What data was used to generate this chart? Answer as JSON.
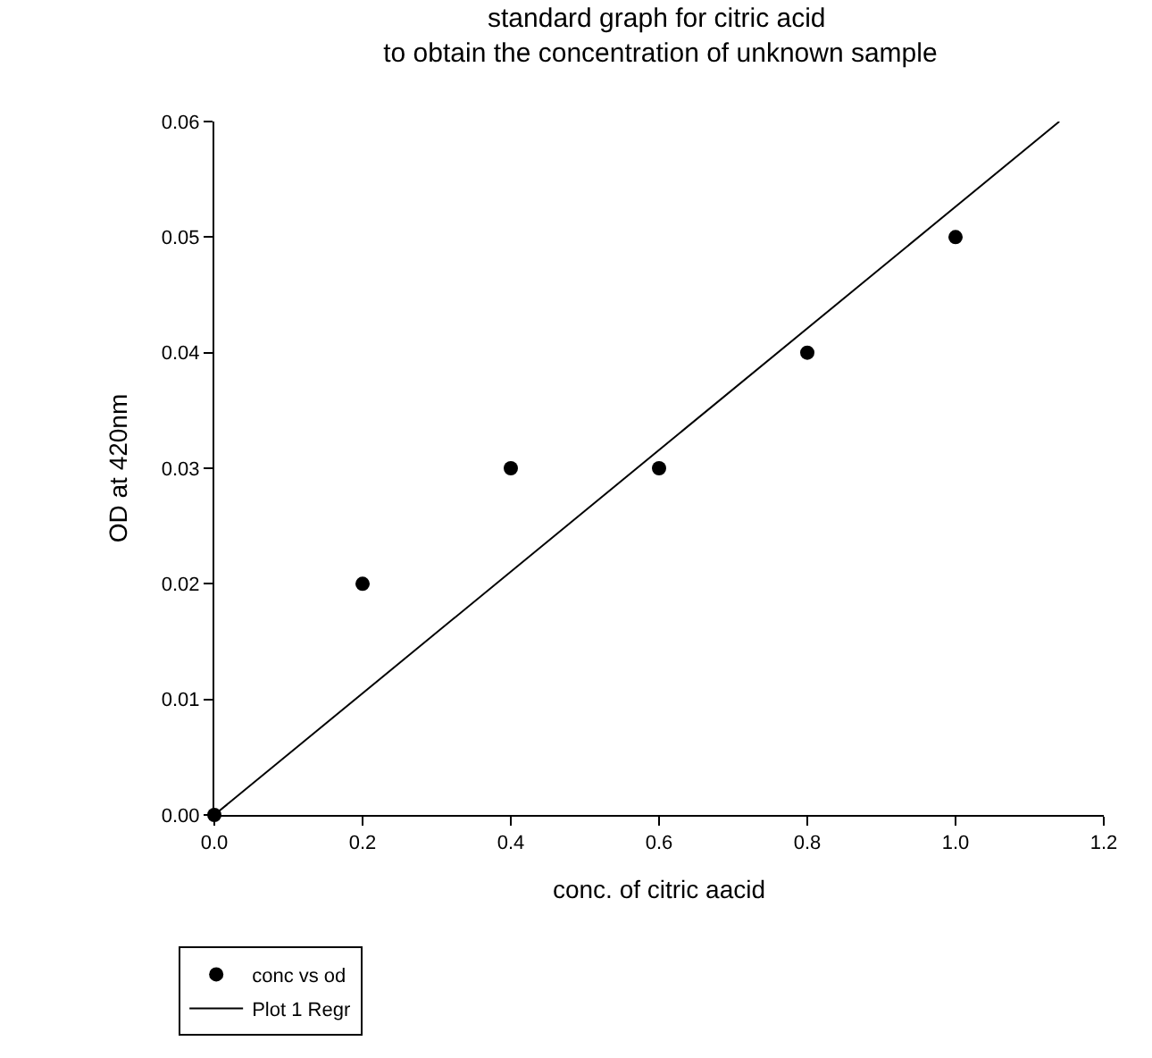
{
  "chart_data": {
    "type": "scatter",
    "title": "standard graph for citric acid\n to obtain the concentration of unknown sample",
    "xlabel": "conc. of citric aacid",
    "ylabel": "OD at 420nm",
    "series": [
      {
        "name": "conc vs od",
        "color": "#000000",
        "marker": "circle",
        "x": [
          0,
          0.2,
          0.4,
          0.6,
          0.8,
          1.0
        ],
        "values": [
          0,
          0.02,
          0.03,
          0.03,
          0.04,
          0.05
        ]
      },
      {
        "name": "Plot 1 Regr",
        "type": "line",
        "color": "#000000",
        "line_style": "solid",
        "x": [
          0,
          1.14
        ],
        "values": [
          0,
          0.06
        ]
      }
    ],
    "xlim": [
      0,
      1.2
    ],
    "xticks": [
      {
        "value": 0,
        "label": "0.0"
      },
      0.2,
      0.4,
      0.6,
      0.8,
      {
        "value": 1,
        "label": "1.0"
      },
      1.2
    ],
    "ylim": [
      0,
      0.06
    ],
    "yticks": [
      {
        "value": 0,
        "label": "0.00"
      },
      0.01,
      0.02,
      0.03,
      0.04,
      0.05,
      0.06
    ],
    "grid": false,
    "legend": "bottom left"
  }
}
